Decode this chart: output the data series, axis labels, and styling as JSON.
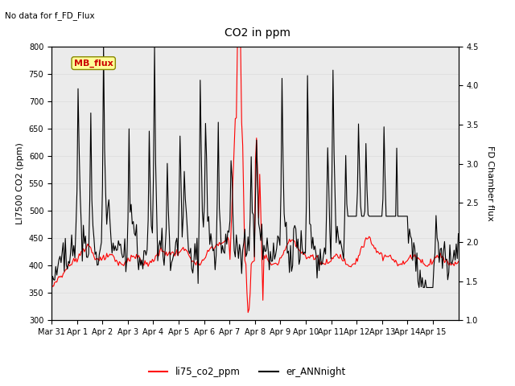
{
  "title": "CO2 in ppm",
  "title_note": "No data for f_FD_Flux",
  "ylabel_left": "LI7500 CO2 (ppm)",
  "ylabel_right": "FD Chamber flux",
  "ylim_left": [
    300,
    800
  ],
  "ylim_right": [
    1.0,
    4.5
  ],
  "yticks_left": [
    300,
    350,
    400,
    450,
    500,
    550,
    600,
    650,
    700,
    750,
    800
  ],
  "yticks_right": [
    1.0,
    1.5,
    2.0,
    2.5,
    3.0,
    3.5,
    4.0,
    4.5
  ],
  "legend_labels": [
    "li75_co2_ppm",
    "er_ANNnight"
  ],
  "legend_colors": [
    "red",
    "black"
  ],
  "mb_flux_label": "MB_flux",
  "mb_flux_color": "#cc0000",
  "mb_flux_bg": "#ffff99",
  "mb_flux_border": "#888800",
  "grid_color": "#e0e0e0",
  "plot_bg": "#ebebeb",
  "xticklabels": [
    "Mar 31",
    "Apr 1",
    "Apr 2",
    "Apr 3",
    "Apr 4",
    "Apr 5",
    "Apr 6",
    "Apr 7",
    "Apr 8",
    "Apr 9",
    "Apr 10",
    "Apr 11",
    "Apr 12",
    "Apr 13",
    "Apr 14",
    "Apr 15"
  ]
}
